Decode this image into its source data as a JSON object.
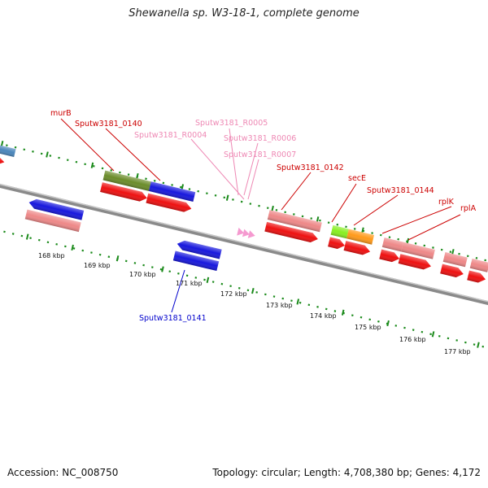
{
  "title": "Shewanella sp. W3-18-1, complete genome",
  "footer": {
    "accession": "Accession: NC_008750",
    "summary": "Topology: circular; Length: 4,708,380 bp; Genes: 4,172"
  },
  "colors": {
    "backbone": "#8a8a8a",
    "tick_green": "#1a8a1a",
    "label_red": "#cc0000",
    "label_pink": "#ee88b4",
    "label_blue": "#0000cc",
    "gene_red": "#ee1111",
    "gene_salmon": "#ee8888",
    "gene_blue": "#1818dd",
    "gene_olive": "#6b8c2a",
    "gene_lime": "#88ee22",
    "gene_orange": "#ff9a1a",
    "gene_steel": "#4a86bb",
    "rna_pink": "#f59ad0"
  },
  "scale_labels": [
    "168 kbp",
    "169 kbp",
    "170 kbp",
    "171 kbp",
    "172 kbp",
    "173 kbp",
    "174 kbp",
    "175 kbp",
    "176 kbp",
    "177 kbp"
  ],
  "gene_labels": [
    {
      "text": "murB",
      "color": "red"
    },
    {
      "text": "Sputw3181_0140",
      "color": "red"
    },
    {
      "text": "Sputw3181_R0004",
      "color": "pink"
    },
    {
      "text": "Sputw3181_R0005",
      "color": "pink"
    },
    {
      "text": "Sputw3181_R0006",
      "color": "pink"
    },
    {
      "text": "Sputw3181_R0007",
      "color": "pink"
    },
    {
      "text": "Sputw3181_0142",
      "color": "red"
    },
    {
      "text": "secE",
      "color": "red"
    },
    {
      "text": "Sputw3181_0144",
      "color": "red"
    },
    {
      "text": "rplK",
      "color": "red"
    },
    {
      "text": "rplA",
      "color": "red"
    },
    {
      "text": "Sputw3181_0141",
      "color": "blue"
    }
  ]
}
